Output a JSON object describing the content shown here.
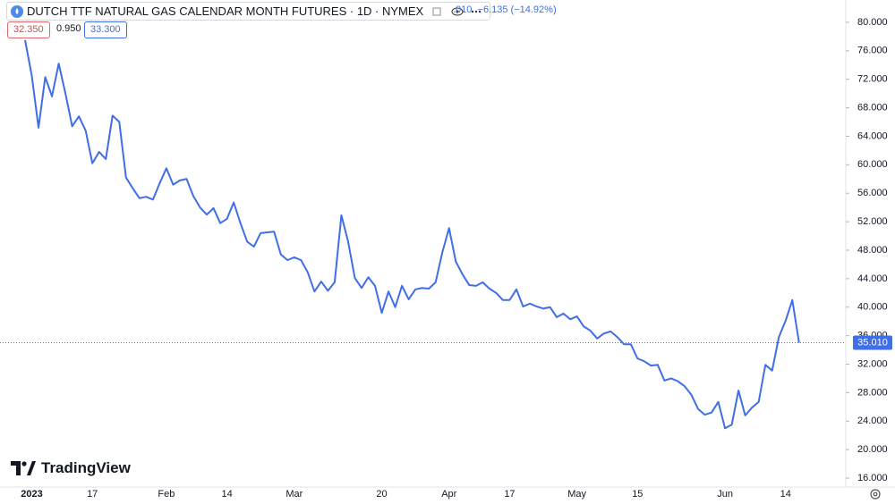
{
  "chart_data": {
    "type": "line",
    "title": "DUTCH TTF NATURAL GAS CALENDAR MONTH FUTURES · 1D · NYMEX",
    "header_price": ".010",
    "change": "−6.135 (−14.92%)",
    "bid": "32.350",
    "spread": "0.950",
    "ask": "33.300",
    "brand": "TradingView",
    "last_price": {
      "value": 35.01,
      "label": "35.010"
    },
    "categories": [
      null,
      "2023",
      null,
      null,
      null,
      null,
      null,
      null,
      null,
      null,
      "17",
      null,
      null,
      null,
      null,
      null,
      null,
      null,
      null,
      null,
      null,
      "Feb",
      null,
      null,
      null,
      null,
      null,
      null,
      null,
      null,
      "14",
      null,
      null,
      null,
      null,
      null,
      null,
      null,
      null,
      null,
      "Mar",
      null,
      null,
      null,
      null,
      null,
      null,
      null,
      null,
      null,
      null,
      null,
      null,
      "20",
      null,
      null,
      null,
      null,
      null,
      null,
      null,
      null,
      null,
      "Apr",
      null,
      null,
      null,
      null,
      null,
      null,
      null,
      null,
      "17",
      null,
      null,
      null,
      null,
      null,
      null,
      null,
      null,
      null,
      "May",
      null,
      null,
      null,
      null,
      null,
      null,
      null,
      null,
      "15",
      null,
      null,
      null,
      null,
      null,
      null,
      null,
      null,
      null,
      null,
      null,
      null,
      "Jun",
      null,
      null,
      null,
      null,
      null,
      null,
      null,
      null,
      "14",
      null,
      null
    ],
    "series": [
      {
        "color": "#3f6ee6",
        "values": [
          77.5,
          72.5,
          65.2,
          72.3,
          69.6,
          74.2,
          70,
          65.4,
          66.8,
          64.8,
          60.2,
          61.8,
          60.8,
          66.9,
          66,
          58.2,
          56.7,
          55.3,
          55.5,
          55.1,
          57.4,
          59.5,
          57.2,
          57.8,
          58,
          55.6,
          54,
          53,
          53.9,
          51.8,
          52.4,
          54.7,
          51.8,
          49.2,
          48.5,
          50.4,
          50.5,
          50.6,
          47.4,
          46.6,
          47,
          46.6,
          44.9,
          42.2,
          43.6,
          42.3,
          43.5,
          52.9,
          49.2,
          44.1,
          42.7,
          44.2,
          43,
          39.2,
          42.2,
          40,
          43,
          41.1,
          42.5,
          42.7,
          42.6,
          43.5,
          47.7,
          51.1,
          46.4,
          44.6,
          43.1,
          43,
          43.5,
          42.6,
          42,
          41,
          41,
          42.5,
          40.1,
          40.5,
          40.1,
          39.8,
          40,
          38.6,
          39.1,
          38.3,
          38.7,
          37.3,
          36.7,
          35.6,
          36.3,
          36.6,
          35.8,
          34.8,
          34.8,
          32.8,
          32.4,
          31.8,
          31.9,
          29.7,
          30,
          29.6,
          28.9,
          27.7,
          25.7,
          24.9,
          25.2,
          26.7,
          23,
          23.5,
          28.3,
          24.8,
          25.9,
          26.7,
          31.9,
          31.1,
          35.8,
          38.1,
          41,
          35.01
        ]
      }
    ],
    "ylim": [
      14.75,
      82.5
    ],
    "yticks": [
      {
        "value": 16,
        "label": "16.000"
      },
      {
        "value": 20,
        "label": "20.000"
      },
      {
        "value": 24,
        "label": "24.000"
      },
      {
        "value": 28,
        "label": "28.000"
      },
      {
        "value": 32,
        "label": "32.000"
      },
      {
        "value": 36,
        "label": "36.000"
      },
      {
        "value": 40,
        "label": "40.000"
      },
      {
        "value": 44,
        "label": "44.000"
      },
      {
        "value": 48,
        "label": "48.000"
      },
      {
        "value": 52,
        "label": "52.000"
      },
      {
        "value": 56,
        "label": "56.000"
      },
      {
        "value": 60,
        "label": "60.000"
      },
      {
        "value": 64,
        "label": "64.000"
      },
      {
        "value": 68,
        "label": "68.000"
      },
      {
        "value": 72,
        "label": "72.000"
      },
      {
        "value": 76,
        "label": "76.000"
      },
      {
        "value": 80,
        "label": "80.000"
      }
    ],
    "grid": false
  }
}
